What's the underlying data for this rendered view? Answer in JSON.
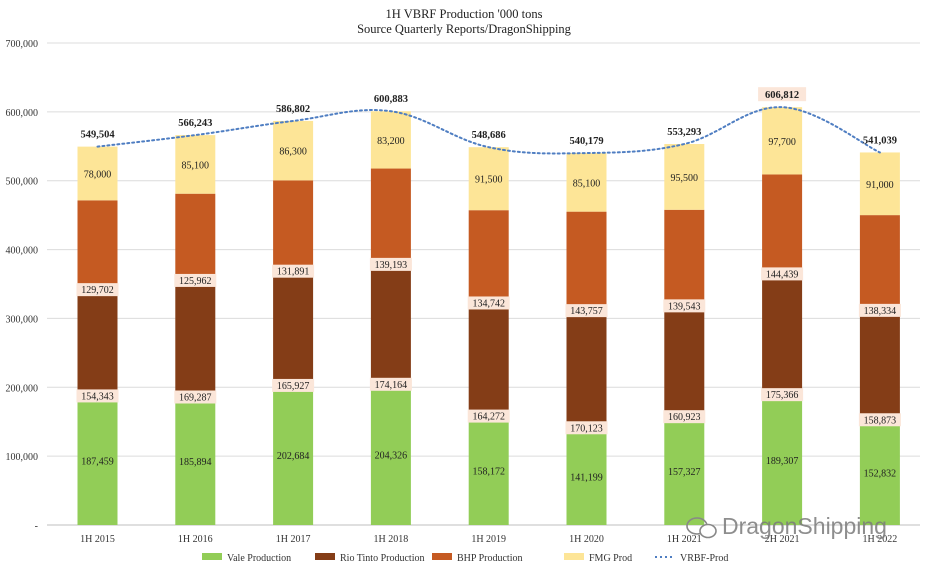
{
  "chart_data": {
    "type": "bar",
    "stacked": true,
    "title": "1H VBRF Production '000 tons",
    "subtitle": "Source Quarterly Reports/DragonShipping",
    "categories": [
      "1H 2015",
      "1H 2016",
      "1H 2017",
      "1H 2018",
      "1H 2019",
      "1H 2020",
      "1H 2021",
      "2H 2021",
      "1H 2022"
    ],
    "ylim": [
      0,
      700000
    ],
    "yticks": [
      "-",
      "100,000",
      "200,000",
      "300,000",
      "400,000",
      "500,000",
      "600,000",
      "700,000"
    ],
    "grid": true,
    "legend_position": "bottom",
    "series": [
      {
        "name": "Vale Production",
        "color": "#92cd57",
        "values": [
          187459,
          185894,
          202684,
          204326,
          158172,
          141199,
          157327,
          189307,
          152832
        ],
        "labels": [
          "187,459",
          "185,894",
          "202,684",
          "204,326",
          "158,172",
          "141,199",
          "157,327",
          "189,307",
          "152,832"
        ]
      },
      {
        "name": "Rio Tinto Production",
        "color": "#843d17",
        "values": [
          154343,
          169287,
          165927,
          174164,
          164272,
          170123,
          160923,
          175366,
          158873
        ],
        "labels": [
          "154,343",
          "169,287",
          "165,927",
          "174,164",
          "164,272",
          "170,123",
          "160,923",
          "175,366",
          "158,873"
        ]
      },
      {
        "name": "BHP Production",
        "color": "#c55a22",
        "values": [
          129702,
          125962,
          131891,
          139193,
          134742,
          143757,
          139543,
          144439,
          138334
        ],
        "labels": [
          "129,702",
          "125,962",
          "131,891",
          "139,193",
          "134,742",
          "143,757",
          "139,543",
          "144,439",
          "138,334"
        ]
      },
      {
        "name": "FMG Prod",
        "color": "#fde597",
        "values": [
          78000,
          85100,
          86300,
          83200,
          91500,
          85100,
          95500,
          97700,
          91000
        ],
        "labels": [
          "78,000",
          "85,100",
          "86,300",
          "83,200",
          "91,500",
          "85,100",
          "95,500",
          "97,700",
          "91,000"
        ]
      }
    ],
    "line": {
      "name": "VRBF-Prod",
      "color": "#4f7ec2",
      "style": "dotted"
    },
    "totals": {
      "values": [
        549504,
        566243,
        586802,
        600883,
        548686,
        540179,
        553293,
        606812,
        541039
      ],
      "labels": [
        "549,504",
        "566,243",
        "586,802",
        "600,883",
        "548,686",
        "540,179",
        "553,293",
        "606,812",
        "541,039"
      ]
    },
    "watermark": "DragonShipping"
  }
}
